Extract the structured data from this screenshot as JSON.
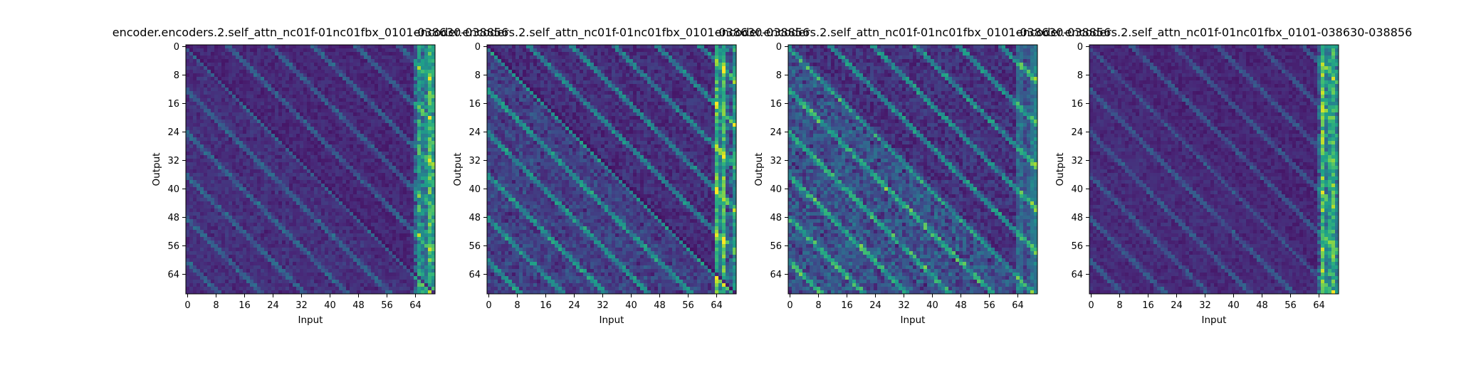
{
  "chart_data": [
    {
      "type": "heatmap",
      "title": "encoder.encoders.2.self_attn_nc01f-01nc01fbx_0101-038630-038856",
      "xlabel": "Input",
      "ylabel": "Output",
      "xticks": [
        "0",
        "8",
        "16",
        "24",
        "32",
        "40",
        "48",
        "56",
        "64"
      ],
      "yticks": [
        "0",
        "8",
        "16",
        "24",
        "32",
        "40",
        "48",
        "56",
        "64"
      ],
      "grid_size": [
        70,
        70
      ],
      "colormap": "viridis",
      "pattern": {
        "seed": 11,
        "diag_dim": 0.8,
        "diag_bright": 0.0,
        "bands": 0.22,
        "right_cols": 0.85,
        "lower_bias": 0.05,
        "noise": 0.1
      }
    },
    {
      "type": "heatmap",
      "title": "encoder.encoders.2.self_attn_nc01f-01nc01fbx_0101-038630-038856",
      "xlabel": "Input",
      "ylabel": "Output",
      "xticks": [
        "0",
        "8",
        "16",
        "24",
        "32",
        "40",
        "48",
        "56",
        "64"
      ],
      "yticks": [
        "0",
        "8",
        "16",
        "24",
        "32",
        "40",
        "48",
        "56",
        "64"
      ],
      "grid_size": [
        70,
        70
      ],
      "colormap": "viridis",
      "pattern": {
        "seed": 23,
        "diag_dim": 0.9,
        "diag_bright": 0.0,
        "bands": 0.38,
        "right_cols": 0.7,
        "lower_bias": 0.12,
        "noise": 0.14
      }
    },
    {
      "type": "heatmap",
      "title": "encoder.encoders.2.self_attn_nc01f-01nc01fbx_0101-038630-038856",
      "xlabel": "Input",
      "ylabel": "Output",
      "xticks": [
        "0",
        "8",
        "16",
        "24",
        "32",
        "40",
        "48",
        "56",
        "64"
      ],
      "yticks": [
        "0",
        "8",
        "16",
        "24",
        "32",
        "40",
        "48",
        "56",
        "64"
      ],
      "grid_size": [
        70,
        70
      ],
      "colormap": "viridis",
      "pattern": {
        "seed": 37,
        "diag_dim": 0.2,
        "diag_bright": 0.0,
        "bands": 0.42,
        "right_cols": 0.35,
        "lower_bias": 0.22,
        "noise": 0.16
      }
    },
    {
      "type": "heatmap",
      "title": "encoder.encoders.2.self_attn_nc01f-01nc01fbx_0101-038630-038856",
      "xlabel": "Input",
      "ylabel": "Output",
      "xticks": [
        "0",
        "8",
        "16",
        "24",
        "32",
        "40",
        "48",
        "56",
        "64"
      ],
      "yticks": [
        "0",
        "8",
        "16",
        "24",
        "32",
        "40",
        "48",
        "56",
        "64"
      ],
      "grid_size": [
        70,
        70
      ],
      "colormap": "viridis",
      "pattern": {
        "seed": 51,
        "diag_dim": 0.3,
        "diag_bright": 0.0,
        "bands": 0.18,
        "right_cols": 0.9,
        "lower_bias": 0.03,
        "noise": 0.09
      }
    }
  ]
}
